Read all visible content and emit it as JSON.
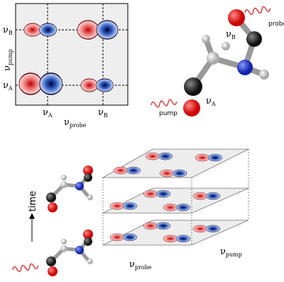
{
  "spectrum": {
    "y_labels": [
      {
        "main": "ν",
        "sub": "B"
      },
      {
        "main": "ν",
        "sub": "pump"
      },
      {
        "main": "ν",
        "sub": "A"
      }
    ],
    "x_labels": [
      {
        "main": "ν",
        "sub": "A"
      },
      {
        "main": "ν",
        "sub": "B"
      },
      {
        "main": "ν",
        "sub": "probe"
      }
    ]
  },
  "molecule": {
    "probe": "probe",
    "mode_b": {
      "main": "ν",
      "sub": "B"
    },
    "mode_a": {
      "main": "ν",
      "sub": "A"
    },
    "pump": "pump"
  },
  "time_series": {
    "time": "time",
    "x_axis": {
      "main": "ν",
      "sub": "probe"
    },
    "y_axis": {
      "main": "ν",
      "sub": "pump"
    }
  }
}
